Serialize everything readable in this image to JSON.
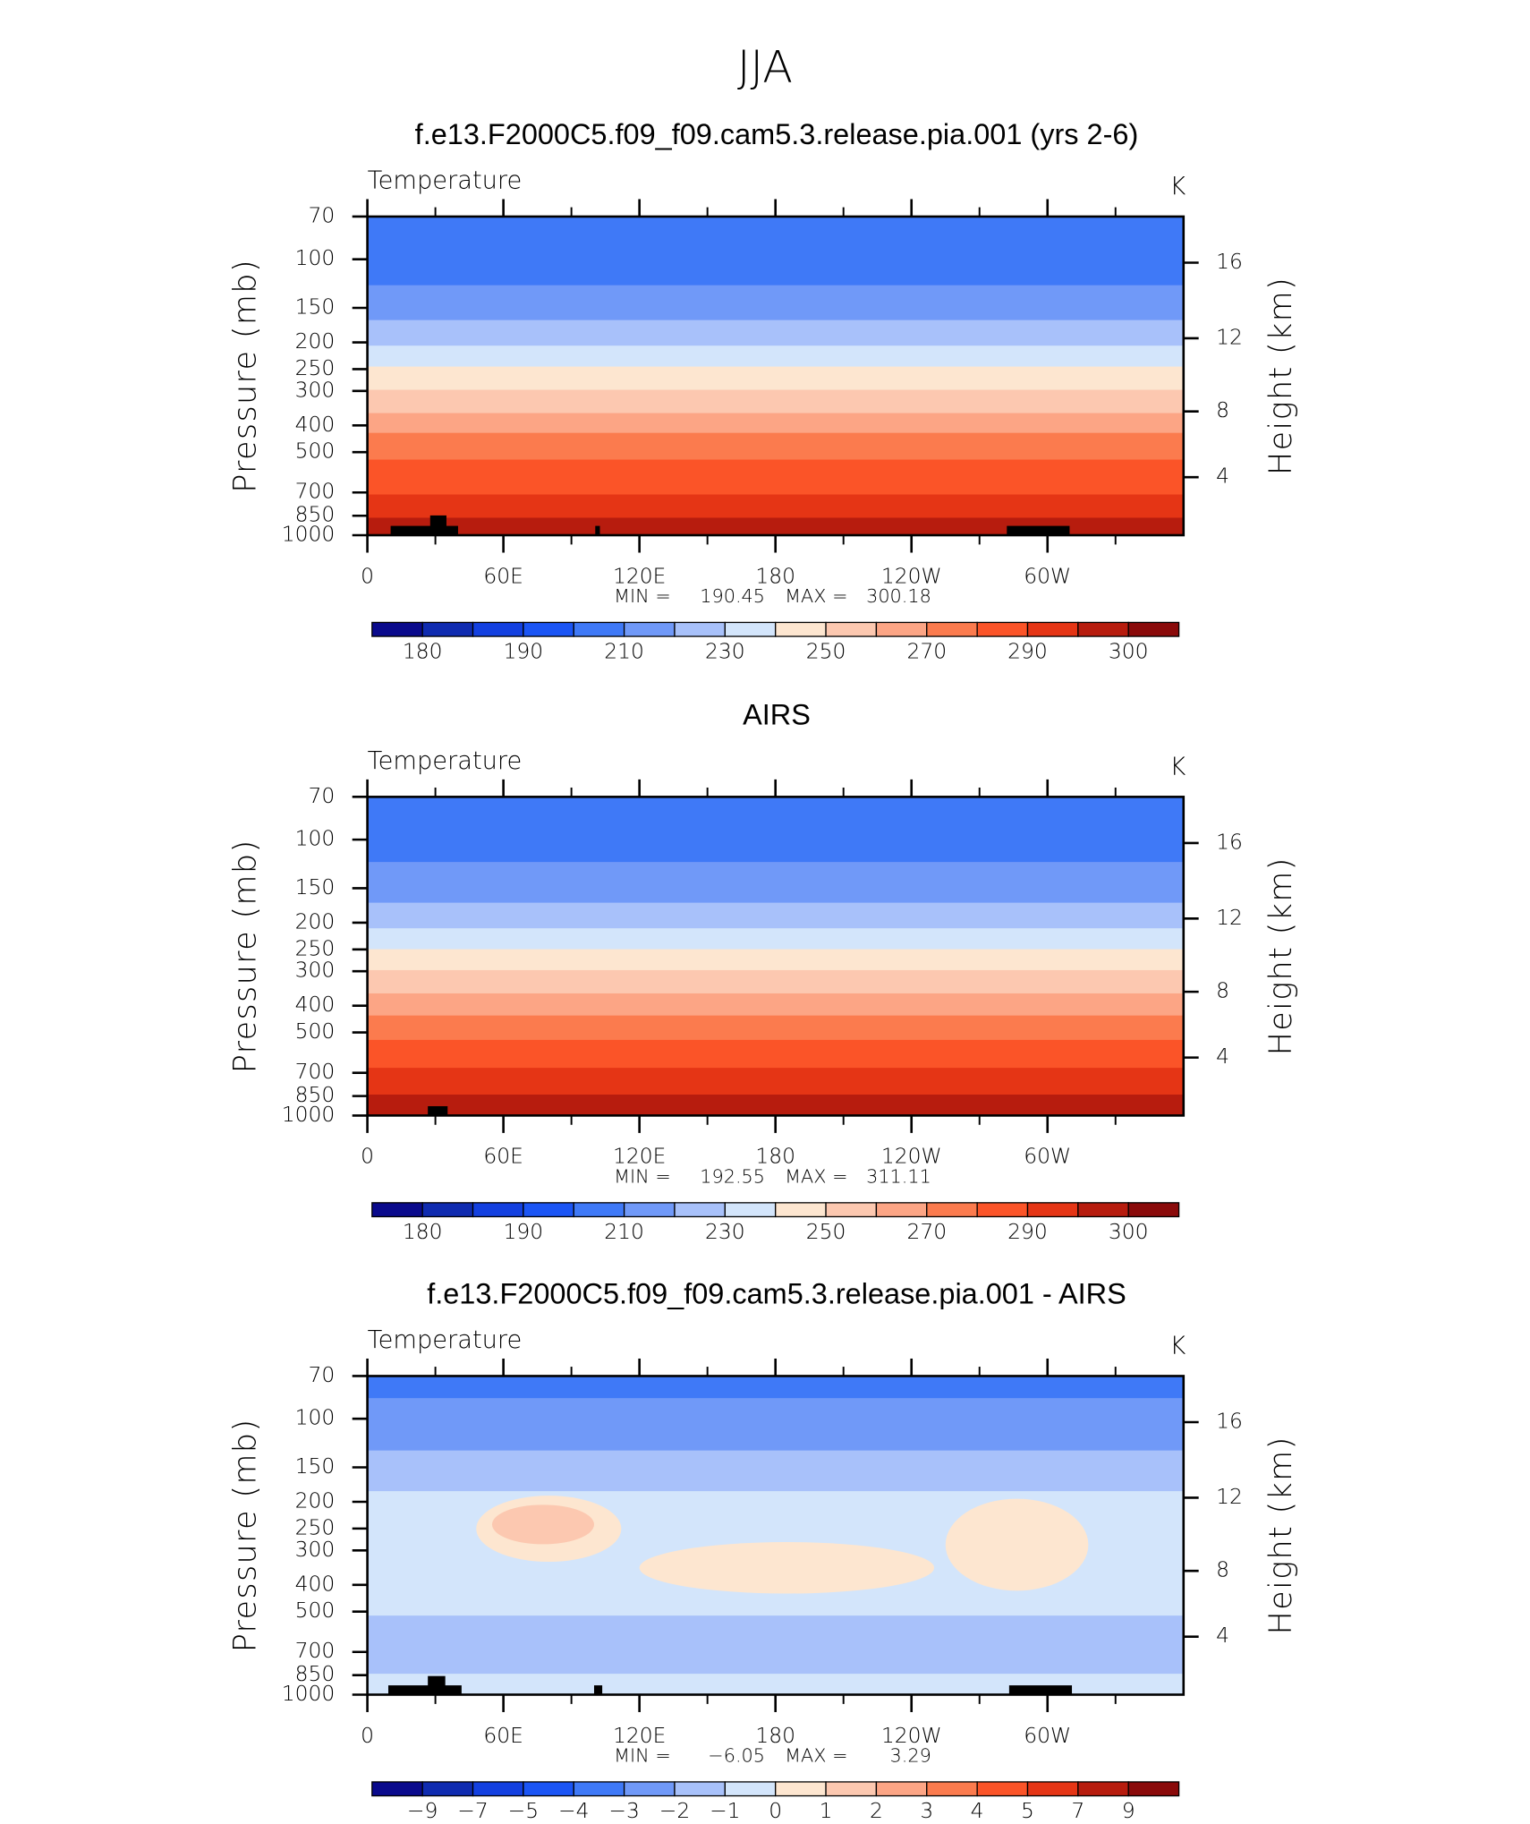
{
  "figure_title": "JJA",
  "chart_data": [
    {
      "type": "contour",
      "title": "f.e13.F2000C5.f09_f09.cam5.3.release.pia.001 (yrs 2-6)",
      "subtitle": "Temperature",
      "units": "K",
      "ylabel": "Pressure (mb)",
      "y2label": "Height (km)",
      "xlim": [
        0,
        360
      ],
      "xticks": [
        0,
        {
          "value": 60,
          "label": "60E"
        },
        {
          "value": 120,
          "label": "120E"
        },
        180,
        {
          "value": 240,
          "label": "120W"
        },
        {
          "value": 300,
          "label": "60W"
        }
      ],
      "xminor": [
        30,
        90,
        150,
        210,
        270,
        330
      ],
      "ylim": [
        1000,
        70
      ],
      "yscale": "log",
      "yticks": [
        70,
        100,
        150,
        200,
        250,
        300,
        400,
        500,
        700,
        850,
        1000
      ],
      "y2ticks": [
        4,
        8,
        12,
        16
      ],
      "y2_scale": "standard-atmosphere",
      "levels": [
        180,
        185,
        190,
        200,
        210,
        220,
        230,
        240,
        250,
        260,
        270,
        280,
        290,
        295,
        300
      ],
      "colors": [
        "#0a0a8c",
        "#0f2bb0",
        "#1340e0",
        "#1b55f5",
        "#3f79f7",
        "#7099f8",
        "#a8c1fa",
        "#d3e5fb",
        "#fde6d0",
        "#fcc8b0",
        "#fca585",
        "#fb7b4e",
        "#fb5428",
        "#e53515",
        "#b71c0e",
        "#8a0a0a"
      ],
      "colorbar_ticks": [
        180,
        190,
        210,
        230,
        250,
        270,
        290,
        300
      ],
      "profile": {
        "pressure": [
          70,
          124,
          166,
          206,
          245,
          297,
          361,
          426,
          532,
          712,
          864,
          1000
        ],
        "values": [
          205,
          210,
          220,
          230,
          240,
          250,
          260,
          270,
          280,
          290,
          295,
          299
        ]
      },
      "anomalies": [],
      "min_label": "MIN =",
      "min": 190.45,
      "max_label": "MAX =",
      "max": 300.18
    },
    {
      "type": "contour",
      "title": "AIRS",
      "subtitle": "Temperature",
      "units": "K",
      "ylabel": "Pressure (mb)",
      "y2label": "Height (km)",
      "xlim": [
        0,
        360
      ],
      "xticks": [
        0,
        {
          "value": 60,
          "label": "60E"
        },
        {
          "value": 120,
          "label": "120E"
        },
        180,
        {
          "value": 240,
          "label": "120W"
        },
        {
          "value": 300,
          "label": "60W"
        }
      ],
      "xminor": [
        30,
        90,
        150,
        210,
        270,
        330
      ],
      "ylim": [
        1000,
        70
      ],
      "yscale": "log",
      "yticks": [
        70,
        100,
        150,
        200,
        250,
        300,
        400,
        500,
        700,
        850,
        1000
      ],
      "y2ticks": [
        4,
        8,
        12,
        16
      ],
      "y2_scale": "standard-atmosphere",
      "levels": [
        180,
        185,
        190,
        200,
        210,
        220,
        230,
        240,
        250,
        260,
        270,
        280,
        290,
        295,
        300
      ],
      "colors": [
        "#0a0a8c",
        "#0f2bb0",
        "#1340e0",
        "#1b55f5",
        "#3f79f7",
        "#7099f8",
        "#a8c1fa",
        "#d3e5fb",
        "#fde6d0",
        "#fcc8b0",
        "#fca585",
        "#fb7b4e",
        "#fb5428",
        "#e53515",
        "#b71c0e",
        "#8a0a0a"
      ],
      "colorbar_ticks": [
        180,
        190,
        210,
        230,
        250,
        270,
        290,
        300
      ],
      "profile": {
        "pressure": [
          70,
          120.5,
          169,
          210,
          250,
          297,
          361,
          434,
          532,
          672,
          840,
          1000
        ],
        "values": [
          205,
          210,
          220,
          230,
          240,
          250,
          260,
          270,
          280,
          290,
          295,
          299
        ]
      },
      "anomalies": [],
      "min_label": "MIN =",
      "min": 192.55,
      "max_label": "MAX =",
      "max": 311.11
    },
    {
      "type": "contour",
      "title": "f.e13.F2000C5.f09_f09.cam5.3.release.pia.001 - AIRS",
      "subtitle": "Temperature",
      "units": "K",
      "ylabel": "Pressure (mb)",
      "y2label": "Height (km)",
      "xlim": [
        0,
        360
      ],
      "xticks": [
        0,
        {
          "value": 60,
          "label": "60E"
        },
        {
          "value": 120,
          "label": "120E"
        },
        180,
        {
          "value": 240,
          "label": "120W"
        },
        {
          "value": 300,
          "label": "60W"
        }
      ],
      "xminor": [
        30,
        90,
        150,
        210,
        270,
        330
      ],
      "ylim": [
        1000,
        70
      ],
      "yscale": "log",
      "yticks": [
        70,
        100,
        150,
        200,
        250,
        300,
        400,
        500,
        700,
        850,
        1000
      ],
      "y2ticks": [
        4,
        8,
        12,
        16
      ],
      "y2_scale": "standard-atmosphere",
      "levels": [
        -9,
        -7,
        -5,
        -4,
        -3,
        -2,
        -1,
        0,
        1,
        2,
        3,
        4,
        5,
        7,
        9
      ],
      "colors": [
        "#0a0a8c",
        "#0f2bb0",
        "#1340e0",
        "#1b55f5",
        "#3f79f7",
        "#7099f8",
        "#a8c1fa",
        "#d3e5fb",
        "#fde6d0",
        "#fcc8b0",
        "#fca585",
        "#fb7b4e",
        "#fb5428",
        "#e53515",
        "#b71c0e",
        "#8a0a0a"
      ],
      "colorbar_ticks": [
        {
          "value": -9,
          "label": "−9"
        },
        {
          "value": -7,
          "label": "−7"
        },
        {
          "value": -5,
          "label": "−5"
        },
        {
          "value": -4,
          "label": "−4"
        },
        {
          "value": -3,
          "label": "−3"
        },
        {
          "value": -2,
          "label": "−2"
        },
        {
          "value": -1,
          "label": "−1"
        },
        0,
        1,
        2,
        3,
        4,
        5,
        7,
        9
      ],
      "profile": {
        "pressure": [
          70,
          80,
          95,
          130,
          165,
          200,
          300,
          400,
          500,
          600,
          700,
          800,
          900,
          1000
        ],
        "values": [
          -3.6,
          -3.2,
          -2.5,
          -2.0,
          -1.5,
          -0.6,
          -0.4,
          -0.6,
          -0.9,
          -1.5,
          -1.6,
          -1.3,
          -0.5,
          -0.4
        ]
      },
      "anomalies": [
        {
          "lon": [
            48,
            112
          ],
          "pressure": [
            190,
            330
          ],
          "value": 0.5
        },
        {
          "lon": [
            55,
            100
          ],
          "pressure": [
            205,
            285
          ],
          "value": 1.5
        },
        {
          "lon": [
            255,
            318
          ],
          "pressure": [
            195,
            420
          ],
          "value": 0.5
        },
        {
          "lon": [
            120,
            250
          ],
          "pressure": [
            280,
            430
          ],
          "value": 0.5
        }
      ],
      "min_label": "MIN =",
      "min": {
        "value": -6.05,
        "label": "−6.05"
      },
      "max_label": "MAX =",
      "max": 3.29
    }
  ]
}
